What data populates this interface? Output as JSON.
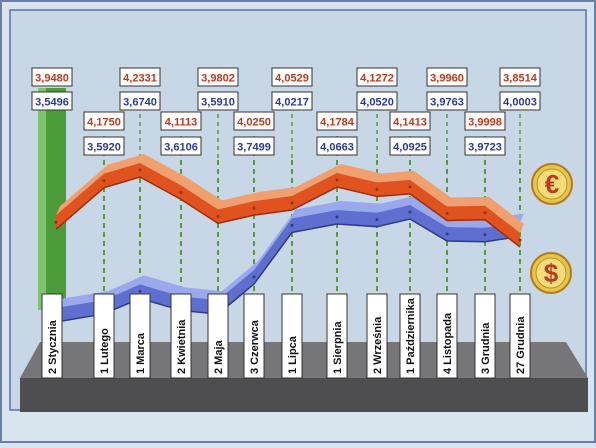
{
  "chart_data": {
    "type": "line",
    "title": "",
    "xlabel": "",
    "ylabel": "",
    "ylim": [
      3.5,
      4.3
    ],
    "categories": [
      "2 Stycznia",
      "1 Lutego",
      "1 Marca",
      "2 Kwietnia",
      "2 Maja",
      "3 Czerwca",
      "1 Lipca",
      "1 Sierpnia",
      "2 Września",
      "1 Października",
      "4 Listopada",
      "3 Grudnia",
      "27 Grudnia"
    ],
    "series": [
      {
        "icon": "euro-icon",
        "color": "#e0531e",
        "values": [
          3.948,
          4.175,
          4.2331,
          4.1113,
          3.9802,
          4.025,
          4.0529,
          4.1784,
          4.1272,
          4.1413,
          3.996,
          3.9998,
          3.8514
        ],
        "labels": [
          "3,9480",
          "4,1750",
          "4,2331",
          "4,1113",
          "3,9802",
          "4,0250",
          "4,0529",
          "4,1784",
          "4,1272",
          "4,1413",
          "3,9960",
          "3,9998",
          "3,8514"
        ]
      },
      {
        "icon": "dollar-icon",
        "color": "#5f6fd0",
        "values": [
          3.5496,
          3.592,
          3.674,
          3.6106,
          3.591,
          3.7499,
          4.0217,
          4.0663,
          4.052,
          4.0925,
          3.9763,
          3.9723,
          4.0003
        ],
        "labels": [
          "3,5496",
          "3,5920",
          "3,6740",
          "3,6106",
          "3,5910",
          "3,7499",
          "4,0217",
          "4,0663",
          "4,0520",
          "4,0925",
          "3,9763",
          "3,9723",
          "4,0003"
        ]
      }
    ],
    "colors": {
      "background": "#d8e4ee",
      "grid": "#5a9a3a",
      "base": "#4e4e50",
      "label_box_border": "#333333",
      "euro_text": "#c0391b",
      "usd_text": "#2a3a9a",
      "first_column": "#4a9d3a"
    }
  }
}
